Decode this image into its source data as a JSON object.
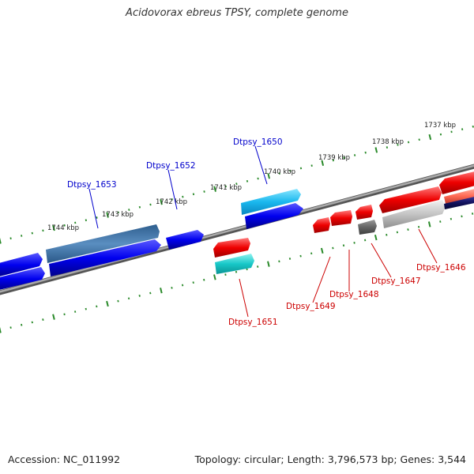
{
  "title": "Acidovorax ebreus TPSY, complete genome",
  "footer": {
    "accession": "Accession: NC_011992",
    "summary": "Topology: circular; Length: 3,796,573 bp; Genes: 3,544"
  },
  "colors": {
    "forward_label": "#0000cc",
    "reverse_label": "#cc0000",
    "tick": "#2a8a2a",
    "backbone": "#777777"
  },
  "scale_labels": [
    "1744 kbp",
    "1743 kbp",
    "1742 kbp",
    "1741 kbp",
    "1740 kbp",
    "1739 kbp",
    "1738 kbp",
    "1737 kbp"
  ],
  "gene_labels_forward": [
    "Dtpsy_1653",
    "Dtpsy_1652",
    "Dtpsy_1650"
  ],
  "gene_labels_reverse": [
    "Dtpsy_1651",
    "Dtpsy_1649",
    "Dtpsy_1648",
    "Dtpsy_1647",
    "Dtpsy_1646"
  ]
}
